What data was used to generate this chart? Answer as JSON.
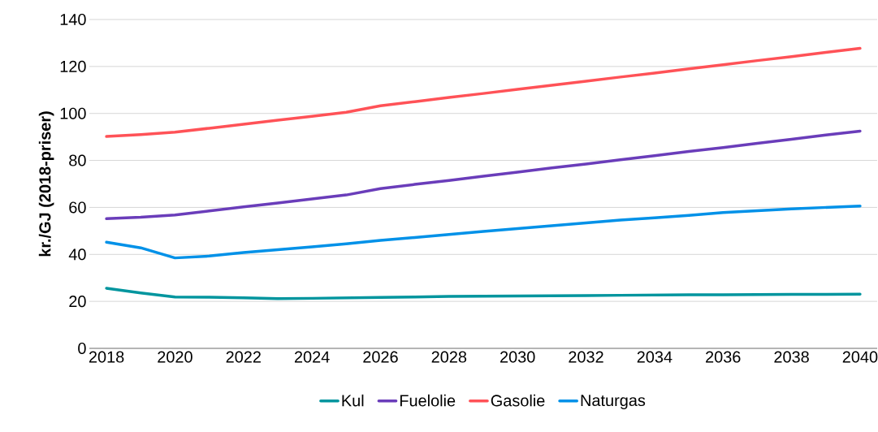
{
  "chart_data": {
    "type": "line",
    "ylabel": "kr./GJ (2018-priser)",
    "x": [
      2018,
      2019,
      2020,
      2021,
      2022,
      2023,
      2024,
      2025,
      2026,
      2027,
      2028,
      2029,
      2030,
      2031,
      2032,
      2033,
      2034,
      2035,
      2036,
      2037,
      2038,
      2039,
      2040
    ],
    "series": [
      {
        "name": "Kul",
        "color": "#00959e",
        "values": [
          25.6,
          23.6,
          21.9,
          21.8,
          21.5,
          21.2,
          21.3,
          21.5,
          21.7,
          21.9,
          22.1,
          22.2,
          22.3,
          22.4,
          22.5,
          22.6,
          22.7,
          22.8,
          22.8,
          22.9,
          23.0,
          23.0,
          23.1
        ]
      },
      {
        "name": "Fuelolie",
        "color": "#6a3dba",
        "values": [
          55.2,
          55.8,
          56.8,
          58.5,
          60.2,
          61.9,
          63.6,
          65.3,
          68.0,
          69.8,
          71.5,
          73.3,
          75.0,
          76.8,
          78.5,
          80.3,
          82.0,
          83.8,
          85.5,
          87.3,
          89.0,
          90.8,
          92.5
        ]
      },
      {
        "name": "Gasolie",
        "color": "#ff5257",
        "values": [
          90.2,
          91.0,
          92.0,
          93.7,
          95.4,
          97.1,
          98.8,
          100.5,
          103.3,
          105.0,
          106.8,
          108.5,
          110.3,
          112.0,
          113.7,
          115.5,
          117.2,
          119.0,
          120.7,
          122.5,
          124.2,
          126.0,
          127.7
        ]
      },
      {
        "name": "Naturgas",
        "color": "#0091e8",
        "values": [
          45.2,
          42.8,
          38.5,
          39.3,
          40.8,
          42.0,
          43.2,
          44.5,
          46.0,
          47.2,
          48.5,
          49.8,
          51.0,
          52.2,
          53.4,
          54.6,
          55.6,
          56.6,
          57.8,
          58.6,
          59.4,
          60.0,
          60.6
        ]
      }
    ],
    "xlim": [
      2017.5,
      2040.5
    ],
    "xticks": [
      2018,
      2020,
      2022,
      2024,
      2026,
      2028,
      2030,
      2032,
      2034,
      2036,
      2038,
      2040
    ],
    "ylim": [
      0,
      140
    ],
    "yticks": [
      0,
      20,
      40,
      60,
      80,
      100,
      120,
      140
    ],
    "grid": "y",
    "legend": "bottom",
    "marker": "none",
    "line_style": "solid"
  }
}
